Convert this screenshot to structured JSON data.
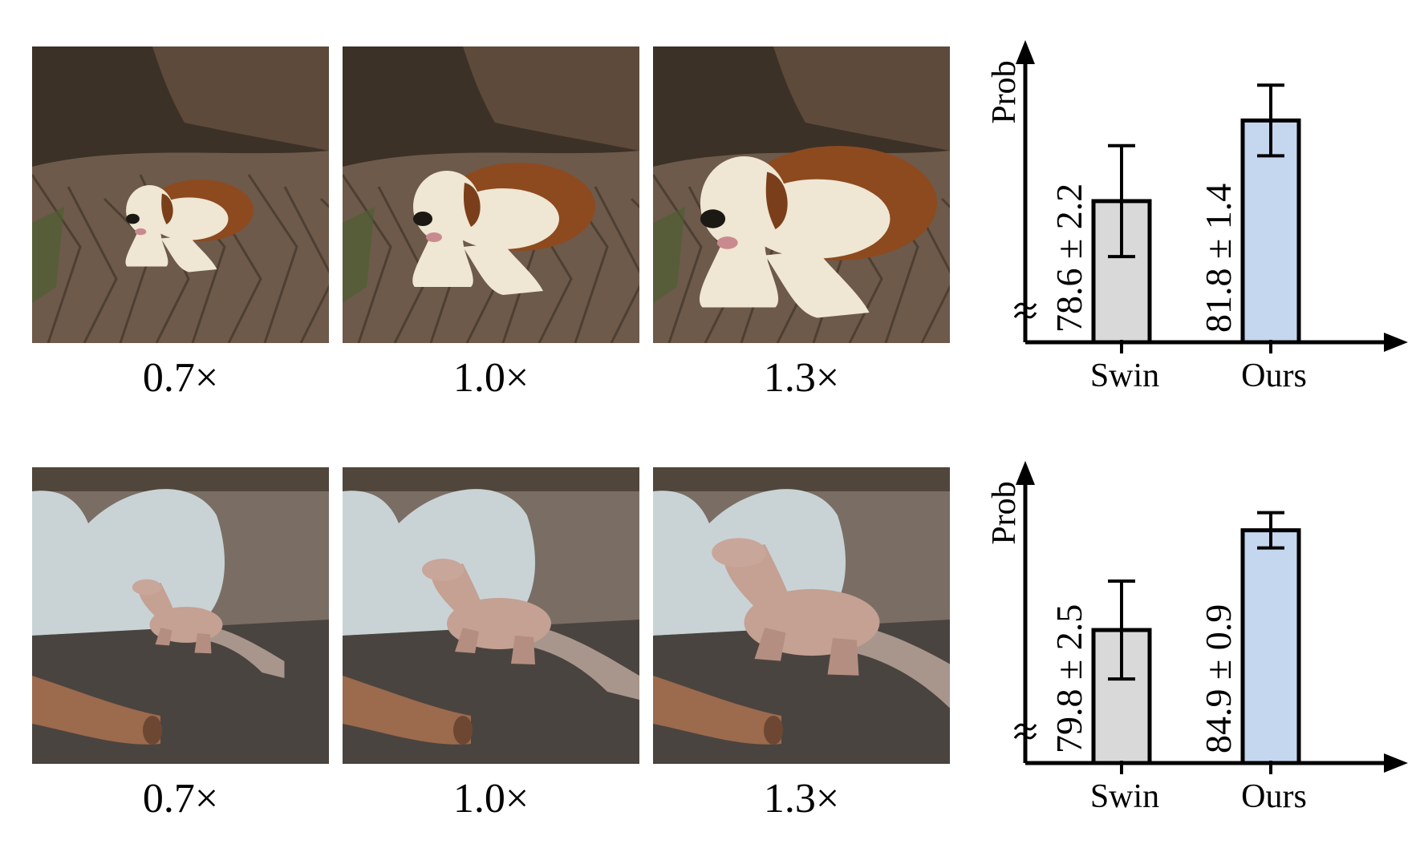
{
  "rows": [
    {
      "subject": "dog",
      "scales": [
        "0.7×",
        "1.0×",
        "1.3×"
      ],
      "scale_factors": [
        0.7,
        1.0,
        1.3
      ],
      "chart_data": {
        "type": "bar",
        "ylabel": "Prob",
        "categories": [
          "Swin",
          "Ours"
        ],
        "values": [
          78.6,
          81.8
        ],
        "errors": [
          2.2,
          1.4
        ],
        "bar_labels": [
          "78.6 ± 2.2",
          "81.8 ± 1.4"
        ],
        "colors": [
          "#d9d9d9",
          "#c4d7ee"
        ],
        "ylim": [
          73,
          83.4
        ],
        "axis_break": true
      }
    },
    {
      "subject": "komodo-dragon",
      "scales": [
        "0.7×",
        "1.0×",
        "1.3×"
      ],
      "scale_factors": [
        0.7,
        1.0,
        1.3
      ],
      "chart_data": {
        "type": "bar",
        "ylabel": "Prob",
        "categories": [
          "Swin",
          "Ours"
        ],
        "values": [
          79.8,
          84.9
        ],
        "errors": [
          2.5,
          0.9
        ],
        "bar_labels": [
          "79.8 ± 2.5",
          "84.9 ± 0.9"
        ],
        "colors": [
          "#d9d9d9",
          "#c4d7ee"
        ],
        "ylim": [
          73,
          86.4
        ],
        "axis_break": true
      }
    }
  ]
}
